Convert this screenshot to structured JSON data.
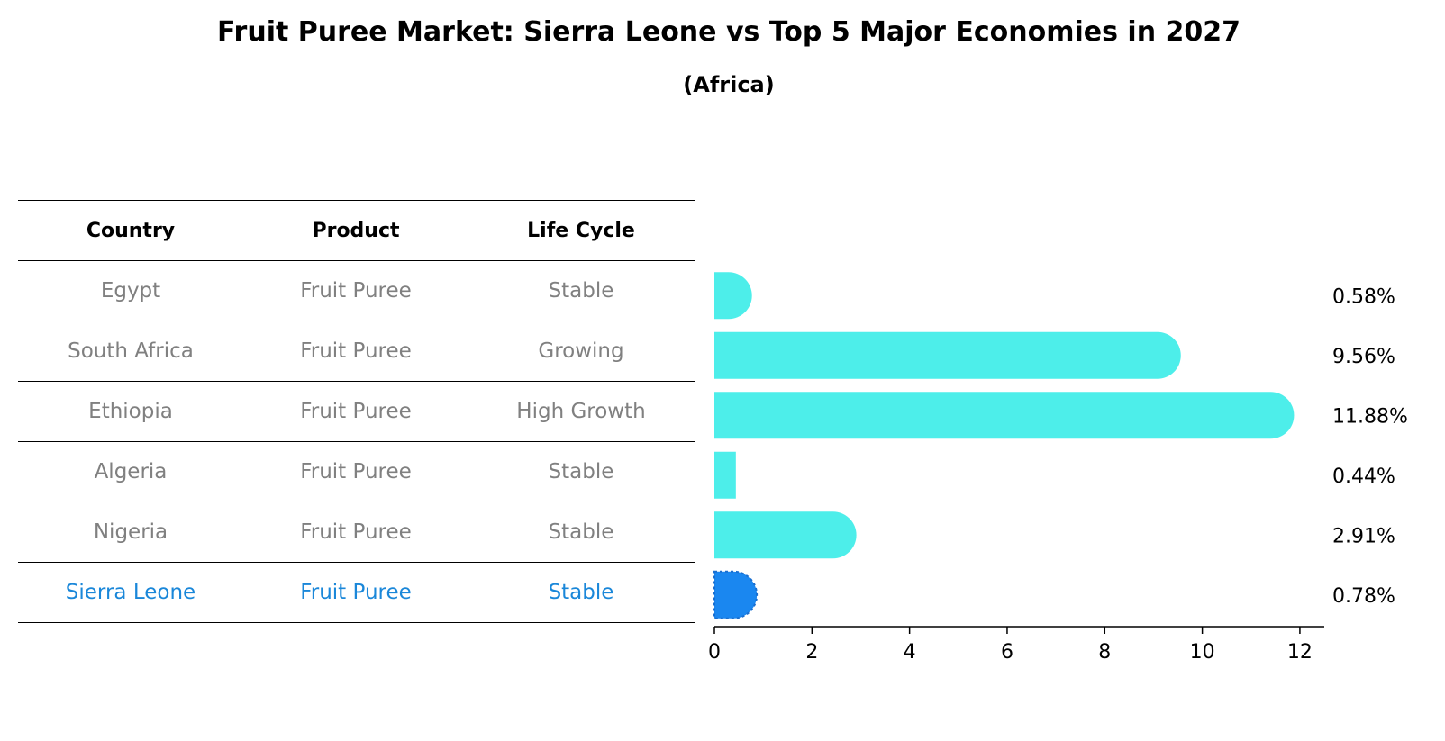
{
  "title": "Fruit Puree Market: Sierra Leone vs Top 5 Major Economies in 2027",
  "subtitle": "(Africa)",
  "table": {
    "headers": [
      "Country",
      "Product",
      "Life Cycle"
    ],
    "rows": [
      {
        "country": "Egypt",
        "product": "Fruit Puree",
        "life_cycle": "Stable"
      },
      {
        "country": "South Africa",
        "product": "Fruit Puree",
        "life_cycle": "Growing"
      },
      {
        "country": "Ethiopia",
        "product": "Fruit Puree",
        "life_cycle": "High Growth"
      },
      {
        "country": "Algeria",
        "product": "Fruit Puree",
        "life_cycle": "Stable"
      },
      {
        "country": "Nigeria",
        "product": "Fruit Puree",
        "life_cycle": "Stable"
      },
      {
        "country": "Sierra Leone",
        "product": "Fruit Puree",
        "life_cycle": "Stable"
      }
    ]
  },
  "colors": {
    "bar": "#4deeea",
    "highlight": "#1a87f0",
    "highlight_text": "#1a87d9"
  },
  "chart_data": {
    "type": "bar",
    "orientation": "horizontal",
    "categories": [
      "Egypt",
      "South Africa",
      "Ethiopia",
      "Algeria",
      "Nigeria",
      "Sierra Leone"
    ],
    "values": [
      0.58,
      9.56,
      11.88,
      0.44,
      2.91,
      0.78
    ],
    "value_labels": [
      "0.58%",
      "9.56%",
      "11.88%",
      "0.44%",
      "2.91%",
      "0.78%"
    ],
    "highlight": "Sierra Leone",
    "xlim": [
      0,
      12.5
    ],
    "xticks": [
      0,
      2,
      4,
      6,
      8,
      10,
      12
    ],
    "xtick_labels": [
      "0",
      "2",
      "4",
      "6",
      "8",
      "10",
      "12"
    ]
  }
}
